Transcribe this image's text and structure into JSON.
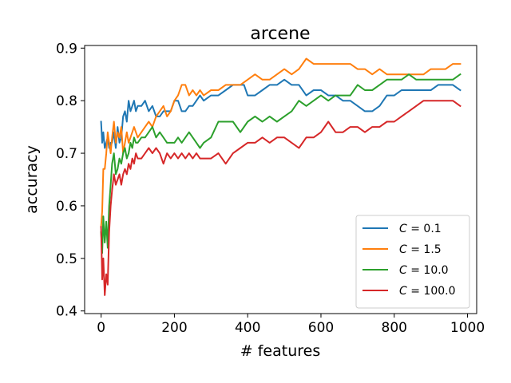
{
  "chart_data": {
    "type": "line",
    "title": "arcene",
    "xlabel": "# features",
    "ylabel": "accuracy",
    "xlim": [
      -45,
      1025
    ],
    "ylim": [
      0.395,
      0.905
    ],
    "x_ticks": [
      0,
      200,
      400,
      600,
      800,
      1000
    ],
    "x_tick_labels": [
      "0",
      "200",
      "400",
      "600",
      "800",
      "1000"
    ],
    "y_ticks": [
      0.4,
      0.5,
      0.6,
      0.7,
      0.8,
      0.9
    ],
    "y_tick_labels": [
      "0.4",
      "0.5",
      "0.6",
      "0.7",
      "0.8",
      "0.9"
    ],
    "grid": false,
    "legend_position": "lower-right",
    "series": [
      {
        "name": "C = 0.1",
        "legend_var": "C",
        "legend_value": "= 0.1",
        "color": "#1f77b4",
        "x": [
          0,
          3,
          6,
          10,
          14,
          18,
          22,
          26,
          30,
          35,
          40,
          45,
          50,
          55,
          60,
          65,
          70,
          75,
          80,
          85,
          90,
          95,
          100,
          110,
          120,
          130,
          140,
          150,
          160,
          170,
          180,
          190,
          200,
          210,
          220,
          230,
          240,
          250,
          260,
          270,
          280,
          300,
          320,
          340,
          360,
          380,
          390,
          400,
          420,
          440,
          460,
          480,
          500,
          520,
          540,
          560,
          580,
          600,
          620,
          640,
          660,
          680,
          700,
          720,
          740,
          760,
          780,
          800,
          820,
          840,
          860,
          880,
          900,
          920,
          940,
          960,
          980
        ],
        "y": [
          0.76,
          0.72,
          0.74,
          0.71,
          0.72,
          0.73,
          0.71,
          0.72,
          0.72,
          0.74,
          0.71,
          0.75,
          0.72,
          0.73,
          0.77,
          0.78,
          0.76,
          0.8,
          0.78,
          0.79,
          0.8,
          0.78,
          0.79,
          0.79,
          0.8,
          0.78,
          0.79,
          0.77,
          0.77,
          0.78,
          0.78,
          0.78,
          0.8,
          0.8,
          0.78,
          0.78,
          0.79,
          0.79,
          0.8,
          0.81,
          0.8,
          0.81,
          0.81,
          0.82,
          0.83,
          0.83,
          0.83,
          0.81,
          0.81,
          0.82,
          0.83,
          0.83,
          0.84,
          0.83,
          0.83,
          0.81,
          0.82,
          0.82,
          0.81,
          0.81,
          0.8,
          0.8,
          0.79,
          0.78,
          0.78,
          0.79,
          0.81,
          0.81,
          0.82,
          0.82,
          0.82,
          0.82,
          0.82,
          0.83,
          0.83,
          0.83,
          0.82
        ]
      },
      {
        "name": "C = 1.5",
        "legend_var": "C",
        "legend_value": "= 1.5",
        "color": "#ff7f0e",
        "x": [
          0,
          3,
          6,
          10,
          14,
          18,
          22,
          26,
          30,
          35,
          40,
          45,
          50,
          55,
          60,
          65,
          70,
          75,
          80,
          85,
          90,
          95,
          100,
          110,
          120,
          130,
          140,
          150,
          160,
          170,
          180,
          190,
          200,
          210,
          220,
          230,
          240,
          250,
          260,
          270,
          280,
          300,
          320,
          340,
          360,
          380,
          400,
          420,
          440,
          460,
          480,
          500,
          520,
          540,
          560,
          580,
          600,
          620,
          640,
          660,
          680,
          700,
          720,
          740,
          760,
          780,
          800,
          820,
          840,
          860,
          880,
          900,
          920,
          940,
          960,
          980
        ],
        "y": [
          0.56,
          0.59,
          0.67,
          0.67,
          0.7,
          0.74,
          0.72,
          0.7,
          0.73,
          0.76,
          0.72,
          0.74,
          0.73,
          0.75,
          0.7,
          0.72,
          0.74,
          0.72,
          0.73,
          0.74,
          0.75,
          0.74,
          0.73,
          0.74,
          0.75,
          0.76,
          0.75,
          0.77,
          0.78,
          0.79,
          0.77,
          0.78,
          0.8,
          0.81,
          0.83,
          0.83,
          0.81,
          0.82,
          0.81,
          0.82,
          0.81,
          0.82,
          0.82,
          0.83,
          0.83,
          0.83,
          0.84,
          0.85,
          0.84,
          0.84,
          0.85,
          0.86,
          0.85,
          0.86,
          0.88,
          0.87,
          0.87,
          0.87,
          0.87,
          0.87,
          0.87,
          0.86,
          0.86,
          0.85,
          0.86,
          0.85,
          0.85,
          0.85,
          0.85,
          0.85,
          0.85,
          0.86,
          0.86,
          0.86,
          0.87,
          0.87
        ]
      },
      {
        "name": "C = 10.0",
        "legend_var": "C",
        "legend_value": "= 10.0",
        "color": "#2ca02c",
        "x": [
          0,
          3,
          6,
          10,
          14,
          18,
          22,
          26,
          30,
          35,
          40,
          45,
          50,
          55,
          60,
          65,
          70,
          75,
          80,
          85,
          90,
          95,
          100,
          110,
          120,
          130,
          140,
          150,
          160,
          170,
          180,
          190,
          200,
          210,
          220,
          230,
          240,
          250,
          260,
          270,
          280,
          300,
          320,
          340,
          360,
          380,
          400,
          420,
          440,
          460,
          480,
          500,
          520,
          540,
          560,
          580,
          600,
          620,
          640,
          660,
          680,
          700,
          720,
          740,
          760,
          780,
          800,
          820,
          840,
          860,
          880,
          900,
          920,
          940,
          960,
          980
        ],
        "y": [
          0.55,
          0.51,
          0.58,
          0.53,
          0.57,
          0.52,
          0.6,
          0.64,
          0.68,
          0.7,
          0.66,
          0.67,
          0.69,
          0.68,
          0.7,
          0.71,
          0.69,
          0.7,
          0.72,
          0.71,
          0.73,
          0.72,
          0.72,
          0.73,
          0.73,
          0.74,
          0.75,
          0.73,
          0.74,
          0.73,
          0.72,
          0.72,
          0.72,
          0.73,
          0.72,
          0.73,
          0.74,
          0.73,
          0.72,
          0.71,
          0.72,
          0.73,
          0.76,
          0.76,
          0.76,
          0.74,
          0.76,
          0.77,
          0.76,
          0.77,
          0.76,
          0.77,
          0.78,
          0.8,
          0.79,
          0.8,
          0.81,
          0.8,
          0.81,
          0.81,
          0.81,
          0.83,
          0.82,
          0.82,
          0.83,
          0.84,
          0.84,
          0.84,
          0.85,
          0.84,
          0.84,
          0.84,
          0.84,
          0.84,
          0.84,
          0.85
        ]
      },
      {
        "name": "C = 100.0",
        "legend_var": "C",
        "legend_value": "= 100.0",
        "color": "#d62728",
        "x": [
          0,
          3,
          6,
          10,
          14,
          18,
          22,
          26,
          30,
          35,
          40,
          45,
          50,
          55,
          60,
          65,
          70,
          75,
          80,
          85,
          90,
          95,
          100,
          110,
          120,
          130,
          140,
          150,
          160,
          170,
          180,
          190,
          200,
          210,
          220,
          230,
          240,
          250,
          260,
          270,
          280,
          300,
          320,
          340,
          360,
          380,
          400,
          420,
          440,
          460,
          480,
          500,
          520,
          540,
          560,
          580,
          600,
          620,
          640,
          660,
          680,
          700,
          720,
          740,
          760,
          780,
          800,
          820,
          840,
          860,
          880,
          900,
          920,
          940,
          960,
          980
        ],
        "y": [
          0.56,
          0.46,
          0.5,
          0.43,
          0.47,
          0.45,
          0.55,
          0.6,
          0.63,
          0.66,
          0.64,
          0.65,
          0.66,
          0.64,
          0.66,
          0.67,
          0.66,
          0.68,
          0.67,
          0.69,
          0.68,
          0.7,
          0.69,
          0.69,
          0.7,
          0.71,
          0.7,
          0.71,
          0.7,
          0.68,
          0.7,
          0.69,
          0.7,
          0.69,
          0.7,
          0.69,
          0.7,
          0.69,
          0.7,
          0.69,
          0.69,
          0.69,
          0.7,
          0.68,
          0.7,
          0.71,
          0.72,
          0.72,
          0.73,
          0.72,
          0.73,
          0.73,
          0.72,
          0.71,
          0.73,
          0.73,
          0.74,
          0.76,
          0.74,
          0.74,
          0.75,
          0.75,
          0.74,
          0.75,
          0.75,
          0.76,
          0.76,
          0.77,
          0.78,
          0.79,
          0.8,
          0.8,
          0.8,
          0.8,
          0.8,
          0.79
        ]
      }
    ]
  }
}
